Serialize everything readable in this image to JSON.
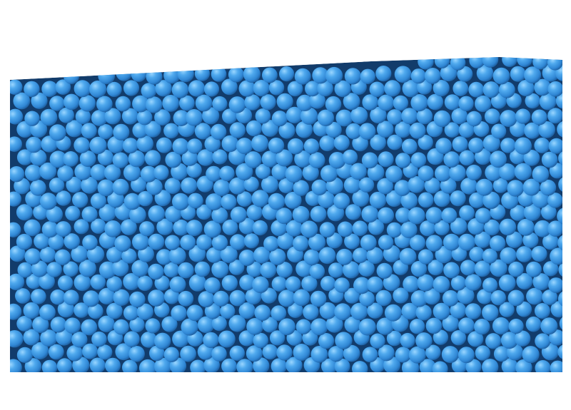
{
  "image": {
    "subject": "granular-packing-spheres",
    "colors": {
      "background": "#ffffff",
      "sphere_base": "#3a9be6",
      "sphere_highlight": "#8fd0ff",
      "sphere_shadow": "#1d5fa3",
      "gap_shadow": "#0d2f57"
    }
  }
}
